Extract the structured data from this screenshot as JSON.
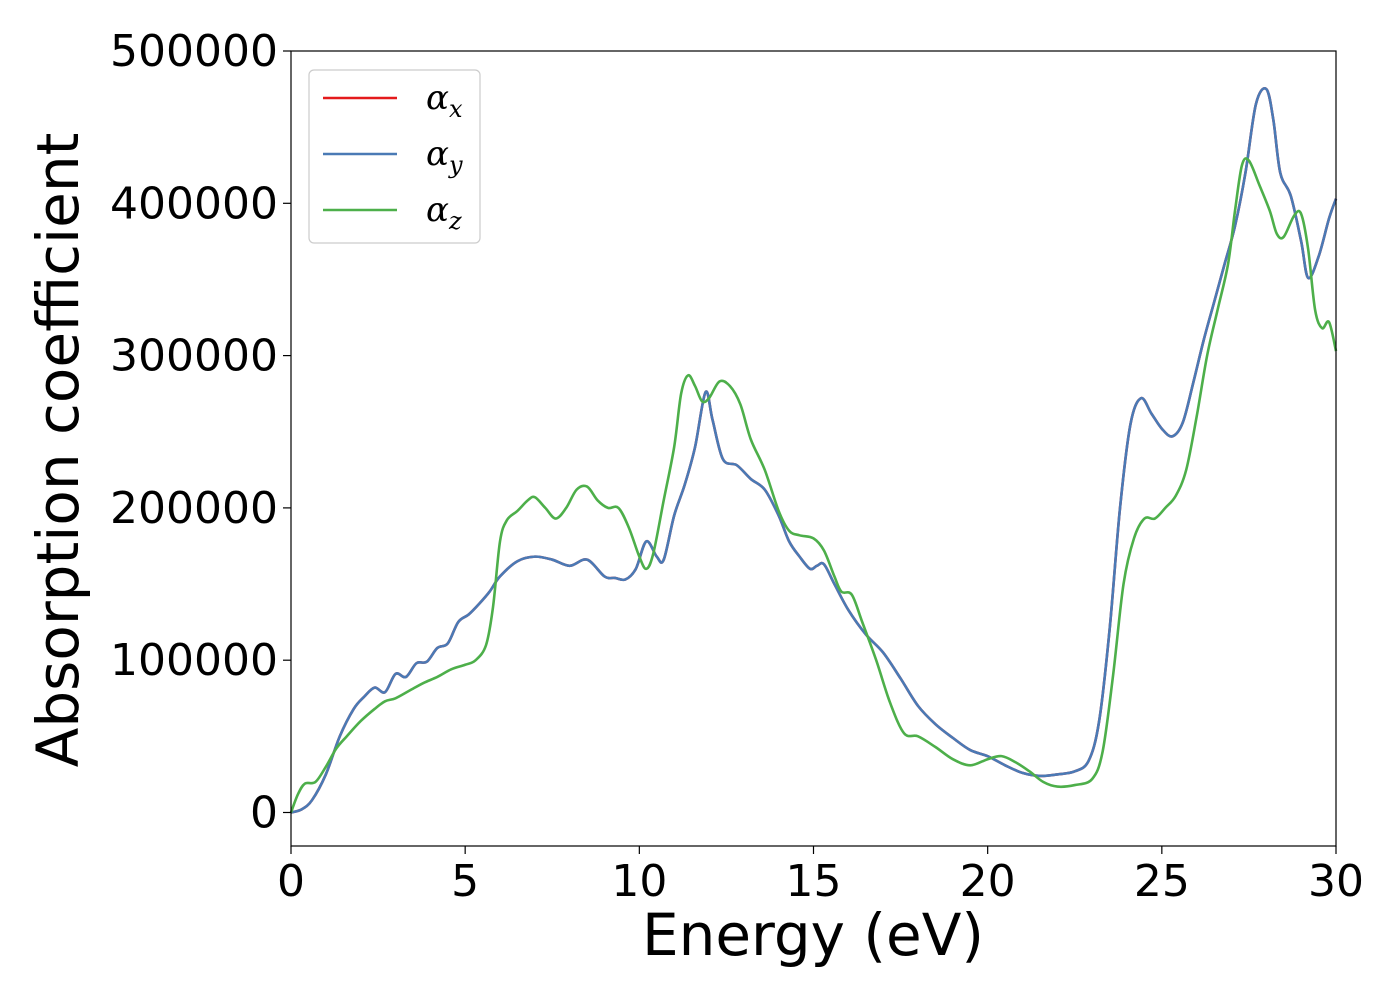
{
  "chart_data": {
    "type": "line",
    "xlabel": "Energy (eV)",
    "ylabel": "Absorption coefficient",
    "xlim": [
      0,
      30
    ],
    "ylim": [
      -22000,
      500000
    ],
    "xticks": [
      0,
      5,
      10,
      15,
      20,
      25,
      30
    ],
    "xtick_labels": [
      "0",
      "5",
      "10",
      "15",
      "20",
      "25",
      "30"
    ],
    "yticks": [
      0,
      100000,
      200000,
      300000,
      400000,
      500000
    ],
    "ytick_labels": [
      "0",
      "100000",
      "200000",
      "300000",
      "400000",
      "500000"
    ],
    "grid": false,
    "legend_position": "top-left",
    "series": [
      {
        "name": "α",
        "subscript": "x",
        "color": "#e41a1c",
        "x": [
          0,
          0.3,
          0.6,
          1.0,
          1.4,
          1.8,
          2.1,
          2.4,
          2.7,
          3.0,
          3.3,
          3.6,
          3.9,
          4.2,
          4.5,
          4.8,
          5.1,
          5.4,
          5.7,
          6.0,
          6.5,
          7.0,
          7.5,
          8.0,
          8.5,
          9.0,
          9.3,
          9.6,
          9.9,
          10.2,
          10.5,
          10.7,
          11.0,
          11.3,
          11.6,
          11.9,
          12.1,
          12.4,
          12.8,
          13.2,
          13.6,
          14.0,
          14.3,
          14.6,
          14.9,
          15.1,
          15.3,
          15.6,
          16.0,
          16.5,
          17.0,
          17.5,
          18.0,
          18.5,
          19.0,
          19.5,
          20.0,
          20.5,
          21.0,
          21.5,
          22.0,
          22.5,
          22.9,
          23.2,
          23.5,
          23.8,
          24.1,
          24.4,
          24.7,
          25.0,
          25.3,
          25.6,
          25.9,
          26.2,
          26.5,
          26.8,
          27.1,
          27.4,
          27.7,
          28.0,
          28.2,
          28.4,
          28.7,
          29.0,
          29.2,
          29.5,
          29.8,
          30.0
        ],
        "values": [
          0,
          2000,
          8000,
          25000,
          50000,
          68000,
          76000,
          82000,
          79000,
          91000,
          89000,
          98000,
          99000,
          108000,
          111000,
          125000,
          130000,
          137000,
          145000,
          155000,
          165000,
          168000,
          166000,
          162000,
          166000,
          155000,
          154000,
          153000,
          160000,
          178000,
          168000,
          166000,
          195000,
          215000,
          240000,
          276000,
          258000,
          232000,
          228000,
          219000,
          212000,
          195000,
          178000,
          168000,
          160000,
          162000,
          163000,
          150000,
          133000,
          117000,
          105000,
          88000,
          70000,
          58000,
          49000,
          41000,
          37000,
          31000,
          26000,
          24000,
          25000,
          27000,
          34000,
          60000,
          120000,
          200000,
          255000,
          272000,
          262000,
          252000,
          247000,
          256000,
          282000,
          310000,
          335000,
          360000,
          385000,
          420000,
          465000,
          475000,
          455000,
          420000,
          405000,
          375000,
          351000,
          365000,
          390000,
          403000
        ]
      },
      {
        "name": "α",
        "subscript": "y",
        "color": "#4a7ab5",
        "x": [
          0,
          0.3,
          0.6,
          1.0,
          1.4,
          1.8,
          2.1,
          2.4,
          2.7,
          3.0,
          3.3,
          3.6,
          3.9,
          4.2,
          4.5,
          4.8,
          5.1,
          5.4,
          5.7,
          6.0,
          6.5,
          7.0,
          7.5,
          8.0,
          8.5,
          9.0,
          9.3,
          9.6,
          9.9,
          10.2,
          10.5,
          10.7,
          11.0,
          11.3,
          11.6,
          11.9,
          12.1,
          12.4,
          12.8,
          13.2,
          13.6,
          14.0,
          14.3,
          14.6,
          14.9,
          15.1,
          15.3,
          15.6,
          16.0,
          16.5,
          17.0,
          17.5,
          18.0,
          18.5,
          19.0,
          19.5,
          20.0,
          20.5,
          21.0,
          21.5,
          22.0,
          22.5,
          22.9,
          23.2,
          23.5,
          23.8,
          24.1,
          24.4,
          24.7,
          25.0,
          25.3,
          25.6,
          25.9,
          26.2,
          26.5,
          26.8,
          27.1,
          27.4,
          27.7,
          28.0,
          28.2,
          28.4,
          28.7,
          29.0,
          29.2,
          29.5,
          29.8,
          30.0
        ],
        "values": [
          0,
          2000,
          8000,
          25000,
          50000,
          68000,
          76000,
          82000,
          79000,
          91000,
          89000,
          98000,
          99000,
          108000,
          111000,
          125000,
          130000,
          137000,
          145000,
          155000,
          165000,
          168000,
          166000,
          162000,
          166000,
          155000,
          154000,
          153000,
          160000,
          178000,
          168000,
          166000,
          195000,
          215000,
          240000,
          276000,
          258000,
          232000,
          228000,
          219000,
          212000,
          195000,
          178000,
          168000,
          160000,
          162000,
          163000,
          150000,
          133000,
          117000,
          105000,
          88000,
          70000,
          58000,
          49000,
          41000,
          37000,
          31000,
          26000,
          24000,
          25000,
          27000,
          34000,
          60000,
          120000,
          200000,
          255000,
          272000,
          262000,
          252000,
          247000,
          256000,
          282000,
          310000,
          335000,
          360000,
          385000,
          420000,
          465000,
          475000,
          455000,
          420000,
          405000,
          375000,
          351000,
          365000,
          390000,
          403000
        ]
      },
      {
        "name": "α",
        "subscript": "z",
        "color": "#4daf4a",
        "x": [
          0,
          0.2,
          0.4,
          0.7,
          1.0,
          1.3,
          1.6,
          2.0,
          2.4,
          2.7,
          3.0,
          3.4,
          3.8,
          4.2,
          4.6,
          5.0,
          5.3,
          5.6,
          5.8,
          6.0,
          6.2,
          6.5,
          6.8,
          7.0,
          7.3,
          7.6,
          7.9,
          8.2,
          8.5,
          8.8,
          9.1,
          9.4,
          9.7,
          10.0,
          10.2,
          10.4,
          10.7,
          11.0,
          11.2,
          11.4,
          11.6,
          11.8,
          12.0,
          12.3,
          12.6,
          12.9,
          13.2,
          13.6,
          14.0,
          14.3,
          14.6,
          15.0,
          15.3,
          15.6,
          15.8,
          16.1,
          16.4,
          16.8,
          17.2,
          17.6,
          18.0,
          18.5,
          19.0,
          19.5,
          20.0,
          20.4,
          20.8,
          21.2,
          21.6,
          22.0,
          22.5,
          23.0,
          23.3,
          23.6,
          23.9,
          24.2,
          24.5,
          24.8,
          25.1,
          25.4,
          25.7,
          26.0,
          26.3,
          26.6,
          26.9,
          27.1,
          27.3,
          27.5,
          27.8,
          28.1,
          28.3,
          28.5,
          28.8,
          29.0,
          29.2,
          29.4,
          29.6,
          29.8,
          30.0
        ],
        "values": [
          0,
          12000,
          19000,
          20000,
          30000,
          42000,
          50000,
          60000,
          68000,
          73000,
          75000,
          80000,
          85000,
          89000,
          94000,
          97000,
          100000,
          110000,
          135000,
          178000,
          192000,
          198000,
          205000,
          207000,
          200000,
          193000,
          200000,
          212000,
          214000,
          205000,
          200000,
          200000,
          187000,
          168000,
          160000,
          170000,
          205000,
          240000,
          275000,
          287000,
          280000,
          270000,
          272000,
          283000,
          280000,
          268000,
          245000,
          225000,
          198000,
          185000,
          182000,
          180000,
          172000,
          155000,
          145000,
          143000,
          125000,
          100000,
          72000,
          52000,
          50000,
          43000,
          35000,
          31000,
          35000,
          37000,
          33000,
          27000,
          20000,
          17000,
          18000,
          22000,
          40000,
          90000,
          150000,
          180000,
          193000,
          193000,
          200000,
          208000,
          225000,
          260000,
          300000,
          330000,
          360000,
          395000,
          425000,
          428000,
          412000,
          395000,
          380000,
          378000,
          392000,
          393000,
          370000,
          330000,
          318000,
          322000,
          303000
        ]
      }
    ]
  }
}
